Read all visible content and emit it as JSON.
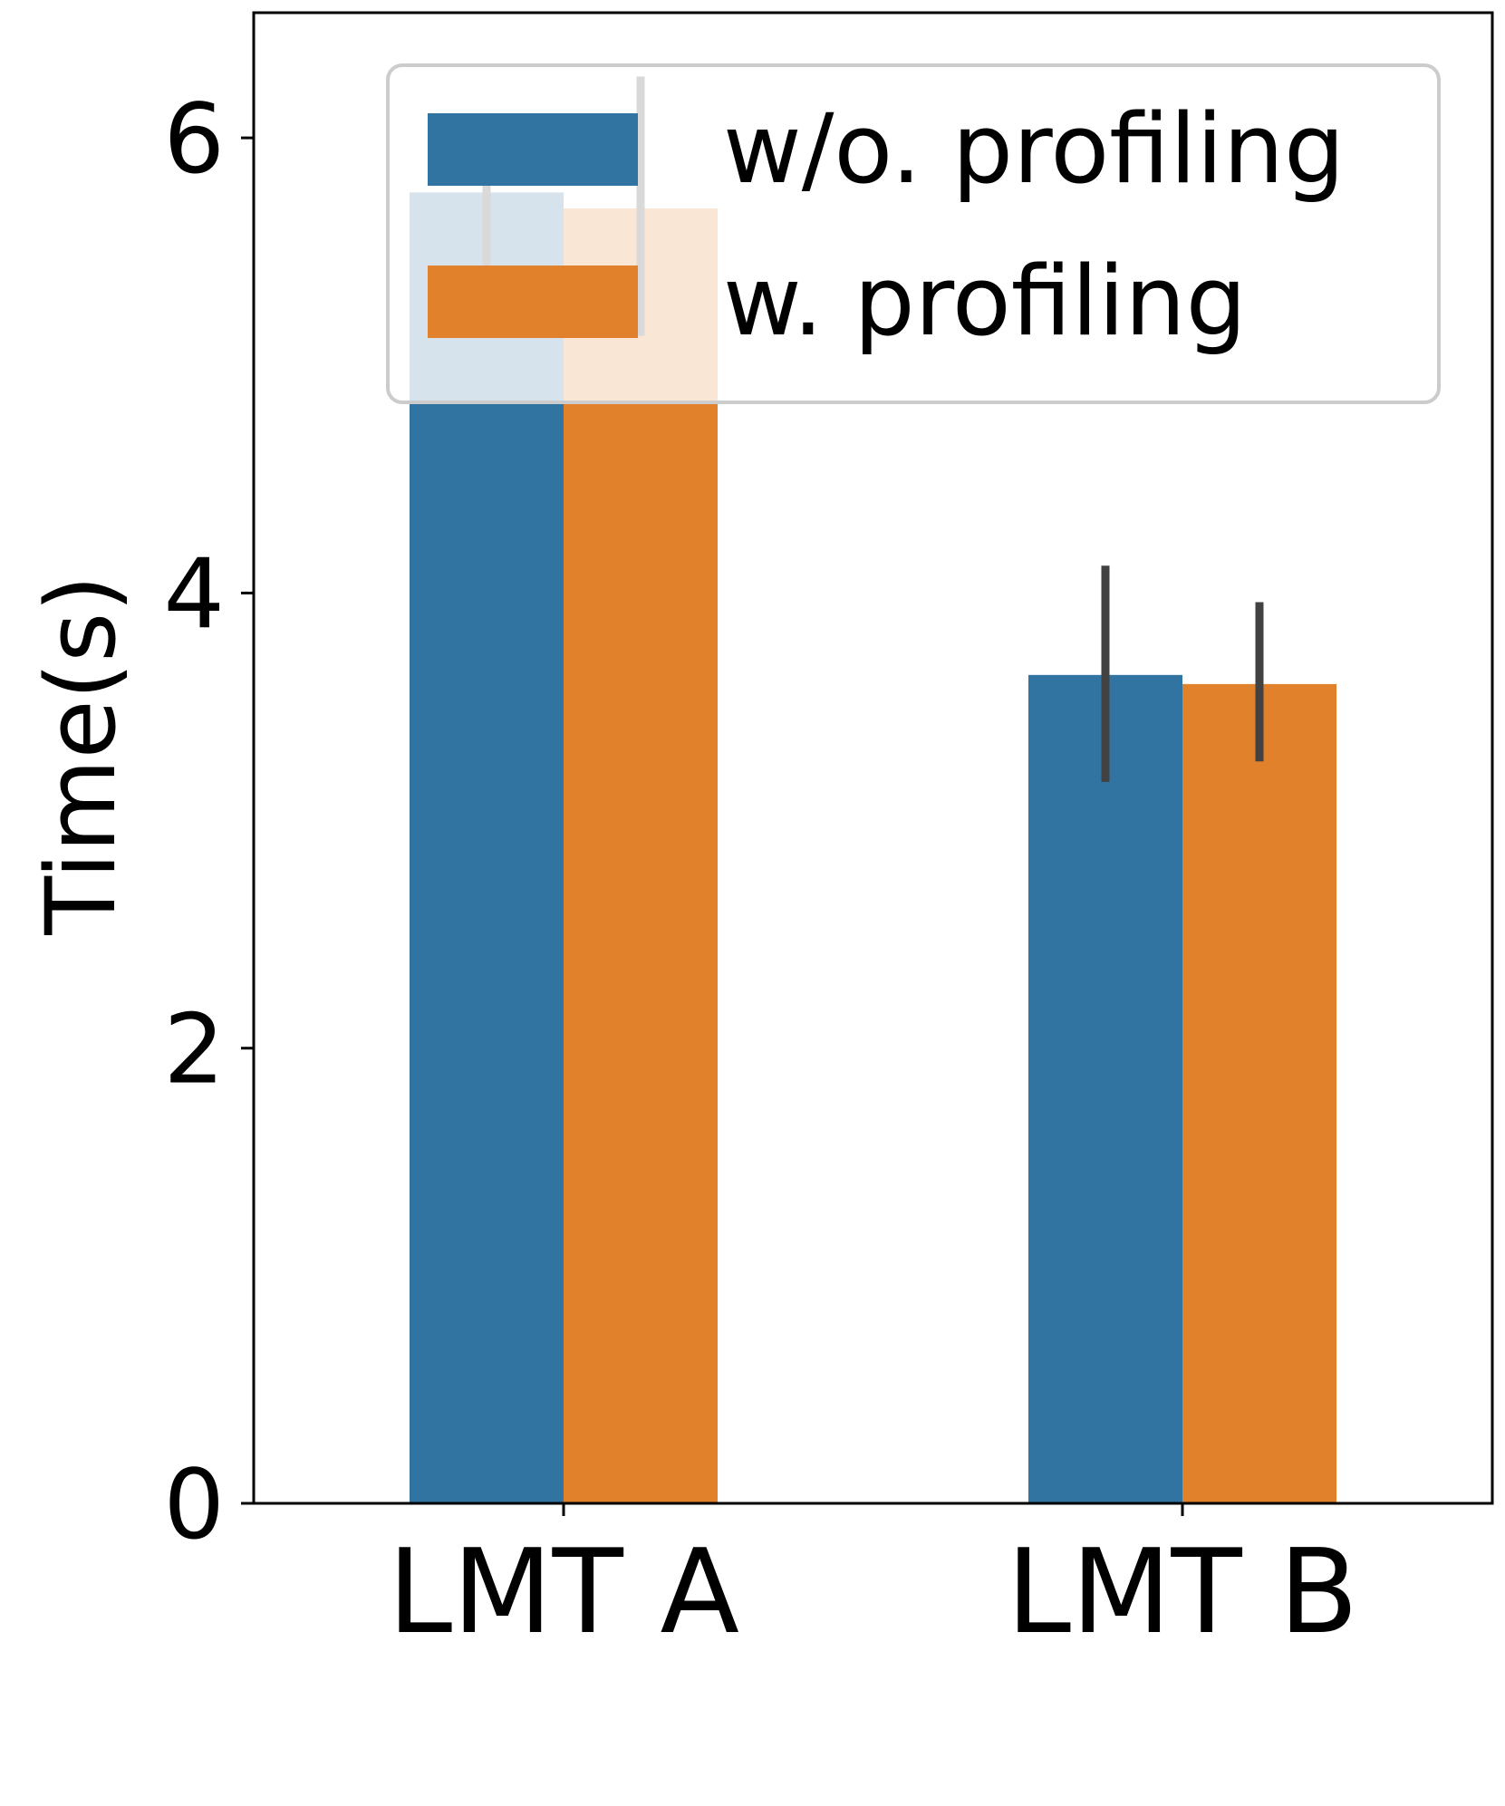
{
  "chart_data": {
    "type": "bar",
    "title": "",
    "xlabel": "",
    "ylabel": "Time(s)",
    "categories": [
      "LMT A",
      "LMT B"
    ],
    "ylim": [
      0,
      6.55
    ],
    "yticks": [
      0,
      2,
      4,
      6
    ],
    "grid": false,
    "legend_position": "top-right",
    "series": [
      {
        "name": "w/o. profiling",
        "color": "#3274a1",
        "values": [
          5.76,
          3.64
        ],
        "error_low": [
          5.42,
          3.17
        ],
        "error_high": [
          5.83,
          4.12
        ]
      },
      {
        "name": "w. profiling",
        "color": "#e1812c",
        "values": [
          5.69,
          3.6
        ],
        "error_low": [
          5.13,
          3.26
        ],
        "error_high": [
          6.27,
          3.96
        ]
      }
    ],
    "error_bar_color": "#424242"
  }
}
